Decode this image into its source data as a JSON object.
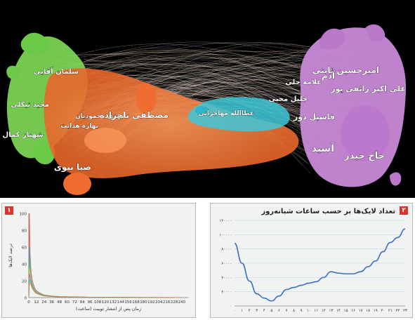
{
  "network": {
    "labels": [
      {
        "text": "سلمان آقایی",
        "color": "#ffffff"
      },
      {
        "text": "مجید تیکلی",
        "color": "#ffffff"
      },
      {
        "text": "شهناز کمال",
        "color": "#ffffff"
      },
      {
        "text": "مهدی محمودیان",
        "color": "#ffffff"
      },
      {
        "text": "بهاره هدایت",
        "color": "#ffffff"
      },
      {
        "text": "مصطفی تاجزاده",
        "color": "#ffffff"
      },
      {
        "text": "ضیا نبوی",
        "color": "#ffffff"
      },
      {
        "text": "عطاالله مهاجرانی",
        "color": "#ffffff"
      },
      {
        "text": "امیرحسین ثابتی",
        "color": "#ffffff"
      },
      {
        "text": "آدم",
        "color": "#ffffff"
      },
      {
        "text": "علامه حلی",
        "color": "#ffffff"
      },
      {
        "text": "علی اکبر رائفی پور",
        "color": "#ffffff"
      },
      {
        "text": "جلیل محبی",
        "color": "#ffffff"
      },
      {
        "text": "فاسیل دور",
        "color": "#ffffff"
      },
      {
        "text": "حاج حیدر",
        "color": "#ffffff"
      },
      {
        "text": "آسید",
        "color": "#ffffff"
      }
    ],
    "cluster_colors": {
      "green": "#7ed957",
      "orange": "#ff8a4c",
      "cyan": "#3ec8d8",
      "purple": "#c98ad8",
      "edges": "#e8d8c8"
    }
  },
  "panel1": {
    "badge": "۱",
    "chart_data": {
      "type": "line",
      "xlabel": "زمان پس از انتشار توییت (ساعت)",
      "ylabel": "درصد لایک‌ها",
      "xticks": [
        "0",
        "12",
        "24",
        "36",
        "48",
        "60",
        "72",
        "84",
        "96",
        "108",
        "120",
        "132",
        "144",
        "156",
        "168",
        "180",
        "192",
        "204",
        "216",
        "228",
        "240"
      ],
      "yticks": [
        "0",
        "20",
        "40",
        "60",
        "80",
        "100"
      ],
      "ylim": [
        0,
        100
      ],
      "xlim": [
        0,
        250
      ],
      "series": [
        {
          "color": "#e74c3c",
          "x": [
            0,
            1,
            2,
            3,
            4,
            6,
            8,
            10,
            12,
            16,
            20,
            24,
            36,
            48,
            72,
            96,
            120,
            168,
            240
          ],
          "y": [
            0,
            100,
            55,
            38,
            28,
            19,
            14,
            10,
            8,
            6,
            4.5,
            3,
            1.8,
            1.2,
            0.8,
            0.5,
            0.3,
            0.2,
            0.1
          ]
        },
        {
          "color": "#3498db",
          "x": [
            0,
            1,
            2,
            3,
            4,
            6,
            8,
            10,
            12,
            16,
            20,
            24,
            36,
            48,
            72,
            96,
            120,
            168,
            240
          ],
          "y": [
            0,
            60,
            42,
            30,
            22,
            16,
            12,
            9,
            7,
            5,
            3.8,
            2.6,
            1.6,
            1,
            0.6,
            0.4,
            0.3,
            0.2,
            0.1
          ]
        },
        {
          "color": "#2ecc71",
          "x": [
            0,
            1,
            2,
            3,
            4,
            6,
            8,
            10,
            12,
            16,
            20,
            24,
            36,
            48,
            72,
            96,
            120,
            168,
            240
          ],
          "y": [
            0,
            45,
            35,
            27,
            20,
            15,
            11,
            8,
            6,
            4.5,
            3.4,
            2.4,
            1.5,
            1,
            0.6,
            0.4,
            0.3,
            0.2,
            0.1
          ]
        },
        {
          "color": "#f1c40f",
          "x": [
            0,
            1,
            2,
            3,
            4,
            6,
            8,
            10,
            12,
            16,
            20,
            24,
            36,
            48,
            72,
            96,
            120,
            168,
            240
          ],
          "y": [
            0,
            35,
            30,
            24,
            18,
            13,
            10,
            7.5,
            6,
            4.2,
            3.1,
            2.2,
            1.4,
            0.9,
            0.6,
            0.4,
            0.3,
            0.2,
            0.1
          ]
        },
        {
          "color": "#9b59b6",
          "x": [
            0,
            1,
            2,
            3,
            4,
            6,
            8,
            10,
            12,
            16,
            20,
            24,
            36,
            48,
            72,
            96,
            120,
            168,
            240
          ],
          "y": [
            0,
            28,
            25,
            21,
            17,
            12,
            9,
            7,
            5.5,
            4,
            3,
            2.1,
            1.3,
            0.9,
            0.6,
            0.4,
            0.3,
            0.2,
            0.1
          ]
        },
        {
          "color": "#1abc9c",
          "x": [
            0,
            1,
            2,
            3,
            4,
            6,
            8,
            10,
            12,
            16,
            20,
            24,
            36,
            48,
            72,
            96,
            120,
            168,
            240
          ],
          "y": [
            0,
            22,
            20,
            18,
            15,
            11,
            8.5,
            6.5,
            5.2,
            3.8,
            2.8,
            2,
            1.3,
            0.9,
            0.5,
            0.3,
            0.2,
            0.1,
            0.1
          ]
        },
        {
          "color": "#e67e22",
          "x": [
            0,
            1,
            2,
            3,
            4,
            6,
            8,
            10,
            12,
            16,
            20,
            24,
            36,
            48,
            72,
            96,
            120,
            168,
            240
          ],
          "y": [
            0,
            18,
            17,
            16,
            14,
            10,
            8,
            6,
            5,
            3.6,
            2.7,
            1.9,
            1.2,
            0.8,
            0.5,
            0.3,
            0.2,
            0.1,
            0.1
          ]
        }
      ]
    }
  },
  "panel2": {
    "badge": "۲",
    "title": "تعداد لایک‌ها بر حسب ساعات شبانه‌روز",
    "chart_data": {
      "type": "line",
      "xticks": [
        "۰",
        "۱",
        "۲",
        "۳",
        "۴",
        "۵",
        "۶",
        "۷",
        "۸",
        "۹",
        "۱۰",
        "۱۱",
        "۱۲",
        "۱۳",
        "۱۴",
        "۱۵",
        "۱۶",
        "۱۷",
        "۱۸",
        "۱۹",
        "۲۰",
        "۲۱",
        "۲۲",
        "۲۳"
      ],
      "yticks": [
        "۰",
        "۲۰۰۰۰",
        "۴۰۰۰۰",
        "۶۰۰۰۰",
        "۸۰۰۰۰",
        "۱۰۰۰۰۰",
        "۱۲۰۰۰۰"
      ],
      "ylim": [
        0,
        120000
      ],
      "grid": true,
      "color": "#3b6fc4",
      "x": [
        0,
        1,
        2,
        3,
        4,
        5,
        6,
        7,
        8,
        9,
        10,
        11,
        12,
        13,
        14,
        15,
        16,
        17,
        18,
        19,
        20,
        21,
        22,
        23
      ],
      "y": [
        88000,
        60000,
        35000,
        17000,
        11000,
        7000,
        14000,
        23000,
        26000,
        29000,
        32000,
        34000,
        40000,
        48000,
        46000,
        45000,
        45000,
        48000,
        55000,
        63000,
        76000,
        89000,
        96000,
        108000
      ]
    }
  }
}
